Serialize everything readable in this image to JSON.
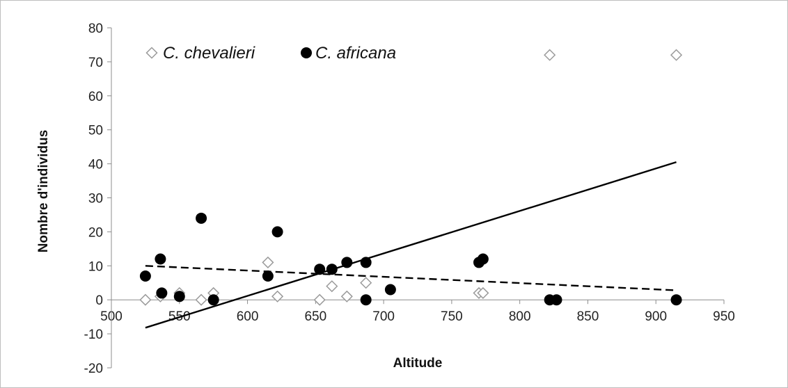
{
  "chart_data": {
    "type": "scatter",
    "title": "",
    "xlabel": "Altitude",
    "ylabel": "Nombre d'individus",
    "xlim": [
      500,
      950
    ],
    "ylim": [
      -20,
      80
    ],
    "x_ticks": [
      500,
      550,
      600,
      650,
      700,
      750,
      800,
      850,
      900,
      950
    ],
    "y_ticks": [
      -20,
      -10,
      0,
      10,
      20,
      30,
      40,
      50,
      60,
      70,
      80
    ],
    "grid": false,
    "legend_position": "top-left",
    "series": [
      {
        "name": "C. chevalieri",
        "marker": "open-diamond",
        "color": "#9a9a9a",
        "trendline": "dashed",
        "trend_x_range": [
          525,
          915
        ],
        "trend_y": [
          10,
          2.8
        ],
        "points": [
          [
            525,
            0
          ],
          [
            536,
            1
          ],
          [
            550,
            2
          ],
          [
            566,
            0
          ],
          [
            575,
            2
          ],
          [
            615,
            11
          ],
          [
            622,
            1
          ],
          [
            653,
            0
          ],
          [
            662,
            4
          ],
          [
            673,
            1
          ],
          [
            687,
            5
          ],
          [
            770,
            2
          ],
          [
            773,
            2
          ],
          [
            822,
            72
          ],
          [
            915,
            72
          ]
        ]
      },
      {
        "name": "C. africana",
        "marker": "filled-circle",
        "color": "#000000",
        "trendline": "solid",
        "trend_x_range": [
          525,
          915
        ],
        "trend_y": [
          -8.2,
          40.5
        ],
        "points": [
          [
            525,
            7
          ],
          [
            536,
            12
          ],
          [
            537,
            2
          ],
          [
            550,
            1
          ],
          [
            566,
            24
          ],
          [
            575,
            0
          ],
          [
            615,
            7
          ],
          [
            622,
            20
          ],
          [
            653,
            9
          ],
          [
            662,
            9
          ],
          [
            673,
            11
          ],
          [
            687,
            11
          ],
          [
            687,
            0
          ],
          [
            705,
            3
          ],
          [
            770,
            11
          ],
          [
            773,
            12
          ],
          [
            822,
            0
          ],
          [
            827,
            0
          ],
          [
            915,
            0
          ]
        ]
      }
    ]
  }
}
